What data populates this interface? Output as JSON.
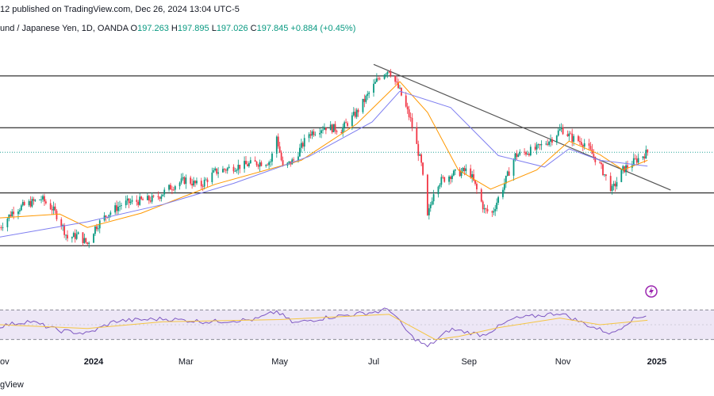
{
  "header": {
    "publish_line": "12 published on TradingView.com, Dec 26, 2024 13:04 UTC-5",
    "symbol": "und / Japanese Yen, 1D, OANDA",
    "o_label": "O",
    "o_value": "197.263",
    "h_label": "H",
    "h_value": "197.895",
    "l_label": "L",
    "l_value": "197.026",
    "c_label": "C",
    "c_value": "197.845",
    "change": "+0.884 (+0.45%)"
  },
  "footer": {
    "brand": "gView"
  },
  "colors": {
    "up": "#089981",
    "down": "#f23645",
    "ma_fast": "#ff9800",
    "ma_slow": "#7e7ef0",
    "rsi": "#7e57c2",
    "rsi_ma": "#f5c542",
    "rsi_band": "#ede7f6",
    "level": "#000000",
    "trend": "#555555",
    "dotted": "#26a69a",
    "grid": "#f0f3fa"
  },
  "chart_data": {
    "type": "candlestick",
    "symbol": "GBPJPY",
    "timeframe": "1D",
    "x_tick_labels": [
      "ov",
      "2024",
      "Mar",
      "May",
      "Jul",
      "Sep",
      "Nov",
      "2025"
    ],
    "x_tick_dates": [
      "2023-11-01",
      "2024-01-01",
      "2024-03-01",
      "2024-05-01",
      "2024-07-01",
      "2024-09-01",
      "2024-11-01",
      "2025-01-01"
    ],
    "price_range": [
      183,
      210
    ],
    "horizontal_levels": [
      205.8,
      200.4,
      193.6,
      188.1
    ],
    "current_price": 197.845,
    "trendline": [
      [
        "2024-07-01",
        207.0
      ],
      [
        "2025-01-10",
        193.9
      ]
    ],
    "price_path": [
      [
        "2023-11-01",
        190.0
      ],
      [
        "2023-11-10",
        191.8
      ],
      [
        "2023-11-20",
        192.5
      ],
      [
        "2023-11-28",
        193.0
      ],
      [
        "2023-12-05",
        192.0
      ],
      [
        "2023-12-10",
        190.8
      ],
      [
        "2023-12-15",
        188.9
      ],
      [
        "2023-12-22",
        189.2
      ],
      [
        "2023-12-28",
        188.3
      ],
      [
        "2024-01-02",
        190.0
      ],
      [
        "2024-01-10",
        191.4
      ],
      [
        "2024-01-20",
        192.5
      ],
      [
        "2024-02-01",
        192.8
      ],
      [
        "2024-02-10",
        193.0
      ],
      [
        "2024-02-20",
        194.2
      ],
      [
        "2024-03-01",
        195.0
      ],
      [
        "2024-03-10",
        194.3
      ],
      [
        "2024-03-20",
        195.8
      ],
      [
        "2024-04-01",
        196.3
      ],
      [
        "2024-04-15",
        196.7
      ],
      [
        "2024-04-25",
        196.9
      ],
      [
        "2024-04-29",
        199.5
      ],
      [
        "2024-05-03",
        196.2
      ],
      [
        "2024-05-10",
        197.0
      ],
      [
        "2024-05-20",
        199.8
      ],
      [
        "2024-05-30",
        200.5
      ],
      [
        "2024-06-10",
        200.2
      ],
      [
        "2024-06-20",
        202.0
      ],
      [
        "2024-06-30",
        204.5
      ],
      [
        "2024-07-05",
        205.8
      ],
      [
        "2024-07-11",
        206.5
      ],
      [
        "2024-07-18",
        204.2
      ],
      [
        "2024-07-25",
        201.2
      ],
      [
        "2024-08-01",
        196.5
      ],
      [
        "2024-08-05",
        191.0
      ],
      [
        "2024-08-10",
        194.5
      ],
      [
        "2024-08-20",
        195.5
      ],
      [
        "2024-09-01",
        196.0
      ],
      [
        "2024-09-11",
        191.8
      ],
      [
        "2024-09-16",
        191.5
      ],
      [
        "2024-09-25",
        195.0
      ],
      [
        "2024-10-01",
        197.5
      ],
      [
        "2024-10-15",
        198.2
      ],
      [
        "2024-10-25",
        199.3
      ],
      [
        "2024-10-31",
        200.3
      ],
      [
        "2024-11-07",
        199.3
      ],
      [
        "2024-11-15",
        198.8
      ],
      [
        "2024-11-25",
        196.5
      ],
      [
        "2024-12-03",
        193.9
      ],
      [
        "2024-12-10",
        196.0
      ],
      [
        "2024-12-20",
        197.2
      ],
      [
        "2024-12-26",
        197.845
      ]
    ],
    "ma_fast_path": [
      [
        "2023-11-01",
        191.0
      ],
      [
        "2023-12-10",
        191.4
      ],
      [
        "2023-12-28",
        190.0
      ],
      [
        "2024-02-01",
        191.5
      ],
      [
        "2024-03-20",
        194.5
      ],
      [
        "2024-05-15",
        197.0
      ],
      [
        "2024-06-20",
        200.8
      ],
      [
        "2024-07-18",
        205.2
      ],
      [
        "2024-08-05",
        202.0
      ],
      [
        "2024-08-25",
        196.0
      ],
      [
        "2024-09-15",
        194.0
      ],
      [
        "2024-10-15",
        196.0
      ],
      [
        "2024-11-05",
        199.0
      ],
      [
        "2024-11-25",
        197.6
      ],
      [
        "2024-12-10",
        196.0
      ],
      [
        "2024-12-26",
        197.0
      ]
    ],
    "ma_slow_path": [
      [
        "2023-11-01",
        189.0
      ],
      [
        "2023-12-28",
        190.6
      ],
      [
        "2024-02-15",
        192.4
      ],
      [
        "2024-04-01",
        194.6
      ],
      [
        "2024-05-20",
        197.4
      ],
      [
        "2024-06-30",
        201.0
      ],
      [
        "2024-07-18",
        204.2
      ],
      [
        "2024-08-20",
        202.5
      ],
      [
        "2024-09-20",
        197.5
      ],
      [
        "2024-10-20",
        196.3
      ],
      [
        "2024-11-05",
        198.2
      ],
      [
        "2024-11-25",
        197.0
      ],
      [
        "2024-12-26",
        196.4
      ]
    ],
    "rsi": {
      "range": [
        20,
        80
      ],
      "bands": [
        70,
        30
      ],
      "path": [
        [
          "2023-11-01",
          48
        ],
        [
          "2023-11-20",
          55
        ],
        [
          "2023-12-10",
          42
        ],
        [
          "2023-12-28",
          38
        ],
        [
          "2024-01-15",
          55
        ],
        [
          "2024-02-15",
          58
        ],
        [
          "2024-03-15",
          54
        ],
        [
          "2024-04-15",
          57
        ],
        [
          "2024-04-29",
          68
        ],
        [
          "2024-05-10",
          52
        ],
        [
          "2024-06-01",
          60
        ],
        [
          "2024-07-05",
          68
        ],
        [
          "2024-07-11",
          72
        ],
        [
          "2024-07-25",
          35
        ],
        [
          "2024-08-05",
          20
        ],
        [
          "2024-08-20",
          44
        ],
        [
          "2024-09-10",
          36
        ],
        [
          "2024-09-30",
          58
        ],
        [
          "2024-10-30",
          66
        ],
        [
          "2024-11-20",
          47
        ],
        [
          "2024-12-03",
          38
        ],
        [
          "2024-12-15",
          56
        ],
        [
          "2024-12-26",
          64
        ]
      ],
      "ma_path": [
        [
          "2023-11-01",
          50
        ],
        [
          "2023-12-28",
          45
        ],
        [
          "2024-02-15",
          54
        ],
        [
          "2024-05-01",
          57
        ],
        [
          "2024-07-11",
          64
        ],
        [
          "2024-08-10",
          30
        ],
        [
          "2024-08-25",
          34
        ],
        [
          "2024-09-20",
          46
        ],
        [
          "2024-10-30",
          59
        ],
        [
          "2024-11-25",
          50
        ],
        [
          "2024-12-26",
          56
        ]
      ]
    }
  }
}
